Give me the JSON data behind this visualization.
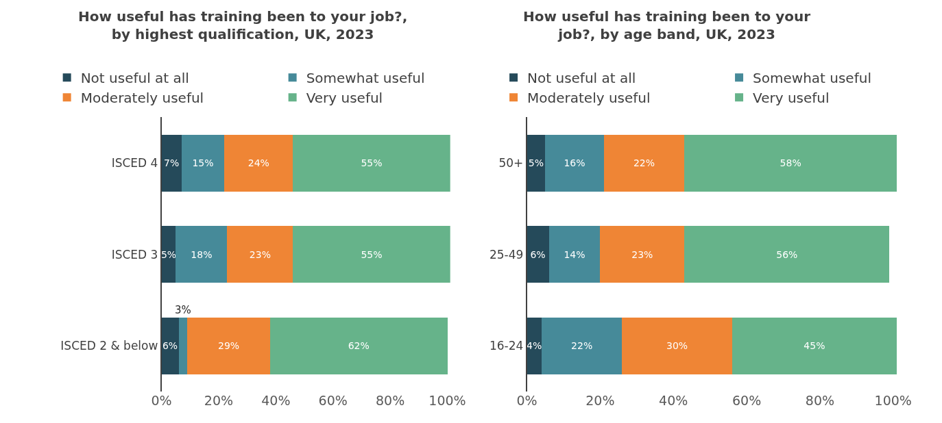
{
  "chart_data": [
    {
      "type": "bar",
      "orientation": "horizontal",
      "stacked": true,
      "title": "How useful has training been to your job?, by highest qualification, UK, 2023",
      "categories": [
        "ISCED 4",
        "ISCED 3",
        "ISCED 2 & below"
      ],
      "series": [
        {
          "name": "Not useful at all",
          "color": "#254a5a",
          "values": [
            7,
            5,
            6
          ],
          "value_labels": [
            "7%",
            "5%",
            "6%"
          ]
        },
        {
          "name": "Somewhat useful",
          "color": "#468a99",
          "values": [
            15,
            18,
            3
          ],
          "value_labels": [
            "15%",
            "18%",
            "3%"
          ]
        },
        {
          "name": "Moderately useful",
          "color": "#ef8535",
          "values": [
            24,
            23,
            29
          ],
          "value_labels": [
            "24%",
            "23%",
            "29%"
          ]
        },
        {
          "name": "Very useful",
          "color": "#66b38a",
          "values": [
            55,
            55,
            62
          ],
          "value_labels": [
            "55%",
            "55%",
            "62%"
          ]
        }
      ],
      "xlim": [
        0,
        101
      ],
      "xticks": [
        {
          "value": 0,
          "label": "0%"
        },
        {
          "value": 20,
          "label": "20%"
        },
        {
          "value": 40,
          "label": "40%"
        },
        {
          "value": 60,
          "label": "60%"
        },
        {
          "value": 80,
          "label": "80%"
        },
        {
          "value": 100,
          "label": "100%"
        }
      ],
      "legend": "top"
    },
    {
      "type": "bar",
      "orientation": "horizontal",
      "stacked": true,
      "title": "How useful has training been to your job?, by age band, UK, 2023",
      "categories": [
        "50+",
        "25-49",
        "16-24"
      ],
      "series": [
        {
          "name": "Not useful at all",
          "color": "#254a5a",
          "values": [
            5,
            6,
            4
          ],
          "value_labels": [
            "5%",
            "6%",
            "4%"
          ]
        },
        {
          "name": "Somewhat useful",
          "color": "#468a99",
          "values": [
            16,
            14,
            22
          ],
          "value_labels": [
            "16%",
            "14%",
            "22%"
          ]
        },
        {
          "name": "Moderately useful",
          "color": "#ef8535",
          "values": [
            22,
            23,
            30
          ],
          "value_labels": [
            "22%",
            "23%",
            "30%"
          ]
        },
        {
          "name": "Very useful",
          "color": "#66b38a",
          "values": [
            58,
            56,
            45
          ],
          "value_labels": [
            "58%",
            "56%",
            "45%"
          ]
        }
      ],
      "xlim": [
        0,
        101
      ],
      "xticks": [
        {
          "value": 0,
          "label": "0%"
        },
        {
          "value": 20,
          "label": "20%"
        },
        {
          "value": 40,
          "label": "40%"
        },
        {
          "value": 60,
          "label": "60%"
        },
        {
          "value": 80,
          "label": "80%"
        },
        {
          "value": 100,
          "label": "100%"
        }
      ],
      "legend": "top"
    }
  ]
}
